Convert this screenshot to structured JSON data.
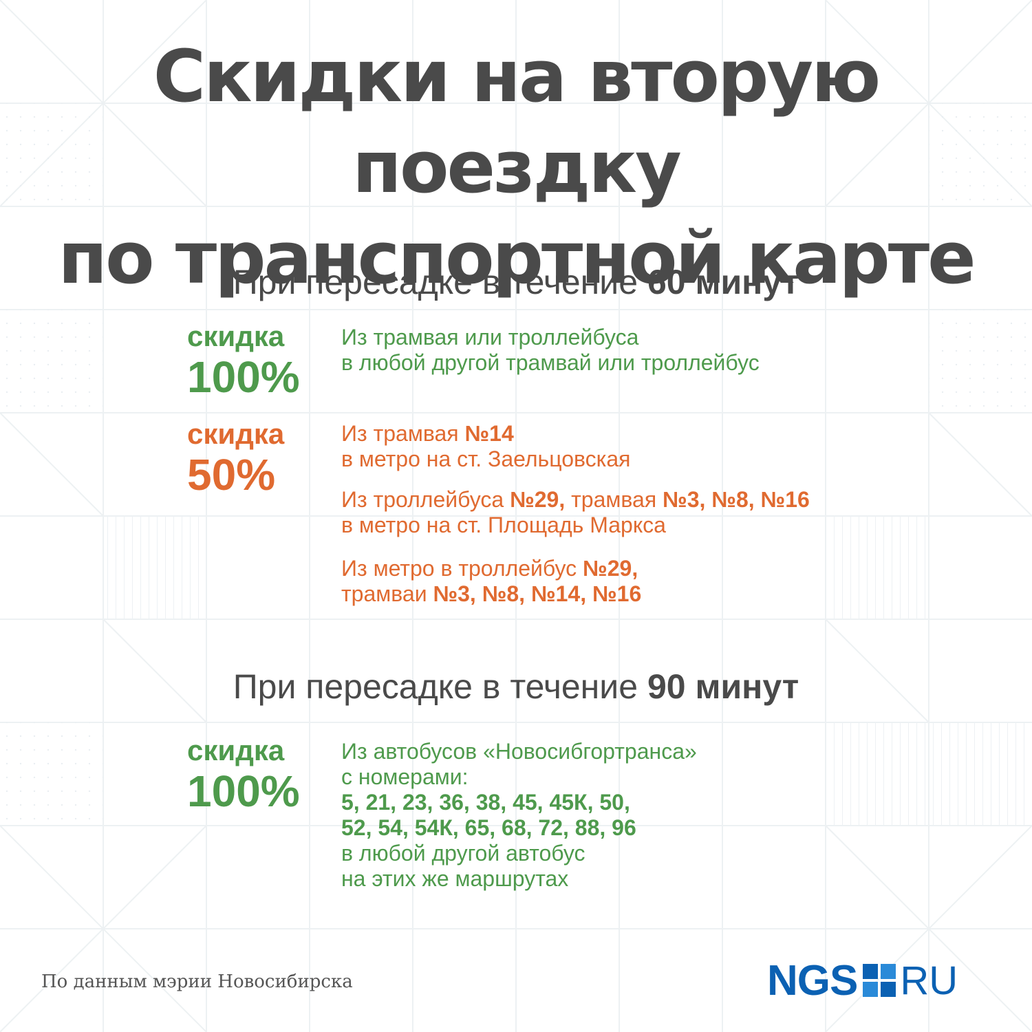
{
  "title": {
    "line1": "Скидки на вторую поездку",
    "line2": "по транспортной карте"
  },
  "section60": {
    "heading_prefix": "При пересадке в течение",
    "heading_bold": "60 минут",
    "items": [
      {
        "discount_label": "скидка",
        "discount_value": "100%",
        "color": "#4e9a4c",
        "routes": [
          {
            "line1": "Из трамвая или троллейбуса",
            "line2": "в любой другой трамвай или троллейбус"
          }
        ]
      },
      {
        "discount_label": "скидка",
        "discount_value": "50%",
        "color": "#e06a30",
        "routes": [
          {
            "line1_text": "Из трамвая ",
            "line1_bold": "№14",
            "line2": "в метро на ст. Заельцовская"
          },
          {
            "line1_text_a": "Из троллейбуса ",
            "line1_bold_a": "№29,",
            "line1_text_b": " трамвая ",
            "line1_bold_b": "№3, №8, №16",
            "line2": "в метро на ст. Площадь Маркса"
          },
          {
            "line1_text": "Из метро в троллейбус ",
            "line1_bold": "№29,",
            "line2_text": "трамваи ",
            "line2_bold": "№3, №8, №14, №16"
          }
        ]
      }
    ]
  },
  "section90": {
    "heading_prefix": "При пересадке в течение",
    "heading_bold": "90 минут",
    "discount_label": "скидка",
    "discount_value": "100%",
    "color": "#4e9a4c",
    "lines": {
      "l1": "Из автобусов «Новосибгортранса»",
      "l2": "с номерами:",
      "l3": "5, 21, 23,  36, 38, 45, 45К, 50,",
      "l4": "52, 54, 54К, 65, 68, 72, 88, 96",
      "l5": "в любой другой автобус",
      "l6": "на этих же маршрутах"
    }
  },
  "footer": {
    "source": "По данным мэрии Новосибирска",
    "logo_left": "NGS",
    "logo_right": "RU",
    "logo_color": "#0b61b3"
  }
}
